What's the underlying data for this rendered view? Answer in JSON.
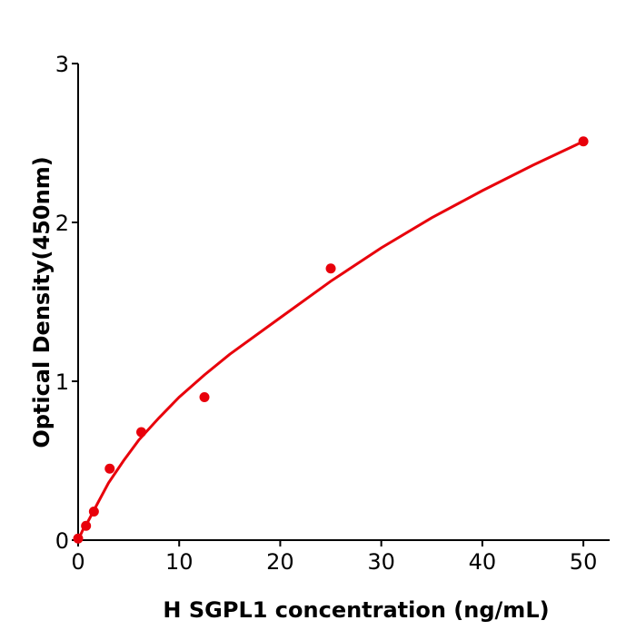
{
  "chart_data": {
    "type": "scatter",
    "title": "",
    "xlabel": "H  SGPL1 concentration (ng/mL)",
    "ylabel": "Optical Density(450nm)",
    "xlim": [
      0,
      52.6
    ],
    "ylim": [
      0,
      3
    ],
    "xticks": [
      0,
      10,
      20,
      30,
      40,
      50
    ],
    "yticks": [
      0,
      1,
      2,
      3
    ],
    "grid": false,
    "color": "#e8000b",
    "points": {
      "x": [
        0,
        0.78,
        1.56,
        3.125,
        6.25,
        12.5,
        25,
        50
      ],
      "y": [
        0.01,
        0.09,
        0.18,
        0.45,
        0.68,
        0.9,
        1.71,
        2.51
      ]
    },
    "fit_curve": {
      "x": [
        0,
        0.5,
        1,
        2,
        3,
        4.5,
        6,
        8,
        10,
        12.5,
        15,
        20,
        25,
        30,
        35,
        40,
        45,
        50
      ],
      "y": [
        0,
        0.07,
        0.12,
        0.24,
        0.36,
        0.5,
        0.63,
        0.77,
        0.9,
        1.04,
        1.17,
        1.4,
        1.63,
        1.84,
        2.03,
        2.2,
        2.36,
        2.51
      ]
    }
  }
}
